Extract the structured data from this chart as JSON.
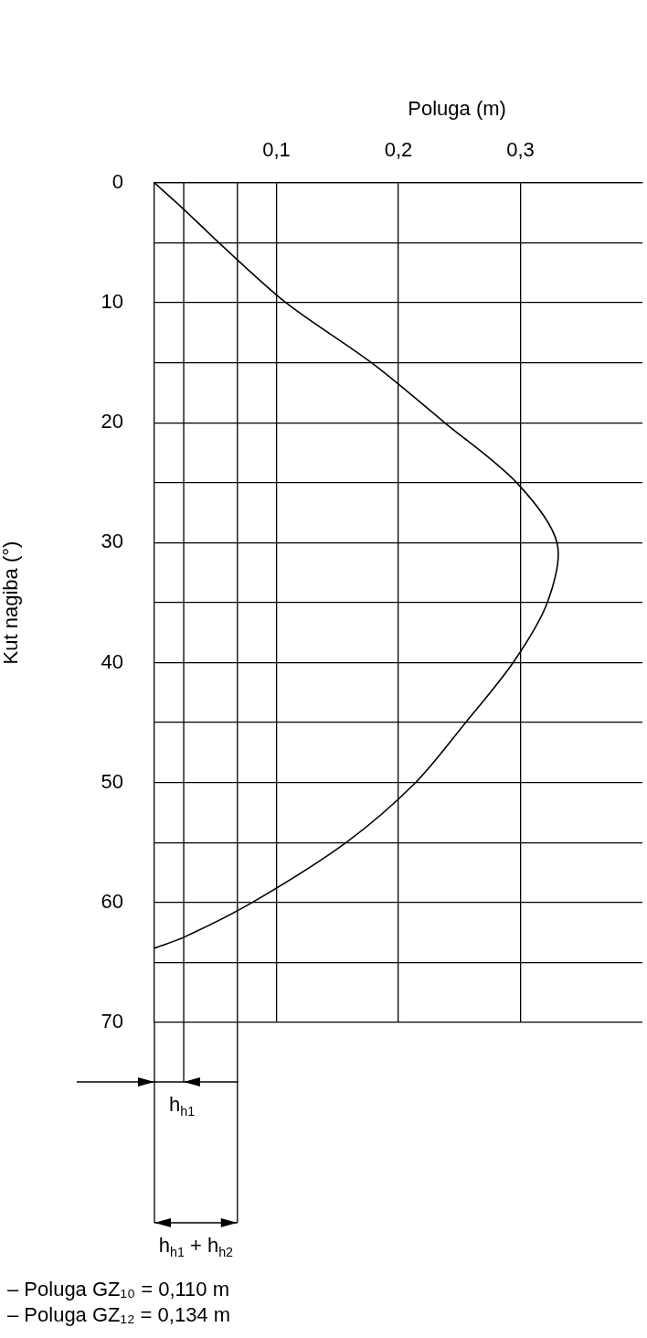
{
  "chart_data": {
    "type": "line",
    "xlabel": "Poluga (m)",
    "ylabel": "Kut nagiba (°)",
    "series": [
      {
        "color": "#000000",
        "x": [
          0,
          0.023,
          0.053,
          0.108,
          0.178,
          0.238,
          0.297,
          0.33,
          0.322,
          0.294,
          0.255,
          0.214,
          0.157,
          0.08,
          0.024,
          0
        ],
        "values": [
          0,
          2.1,
          5,
          10,
          15,
          20,
          25,
          30,
          35,
          40,
          45,
          50,
          55,
          60,
          62.9,
          63.8
        ]
      }
    ],
    "xlim": [
      0,
      0.4
    ],
    "xticks": [
      {
        "value": 0.1,
        "label": "0,1"
      },
      {
        "value": 0.2,
        "label": "0,2"
      },
      {
        "value": 0.3,
        "label": "0,3"
      }
    ],
    "ylim": [
      70,
      0
    ],
    "yticks": [
      0,
      {
        "value": 5,
        "label": null
      },
      10,
      {
        "value": 15,
        "label": null
      },
      20,
      {
        "value": 25,
        "label": null
      },
      30,
      {
        "value": 35,
        "label": null
      },
      40,
      {
        "value": 45,
        "label": null
      },
      50,
      {
        "value": 55,
        "label": null
      },
      60,
      {
        "value": 65,
        "label": null
      },
      70
    ],
    "grid": true,
    "ref_lines": [
      {
        "axis": "x",
        "value": 0.024,
        "label": "h$_{h1}$",
        "color": "#000000"
      },
      {
        "axis": "x",
        "value": 0.068,
        "label": "h$_{h1}$ + h$_{h2}$",
        "color": "#000000"
      }
    ],
    "annotations": [
      "– Poluga GZ₁₀ = 0,110 m",
      "– Poluga GZ₁₂ = 0,134 m"
    ]
  }
}
